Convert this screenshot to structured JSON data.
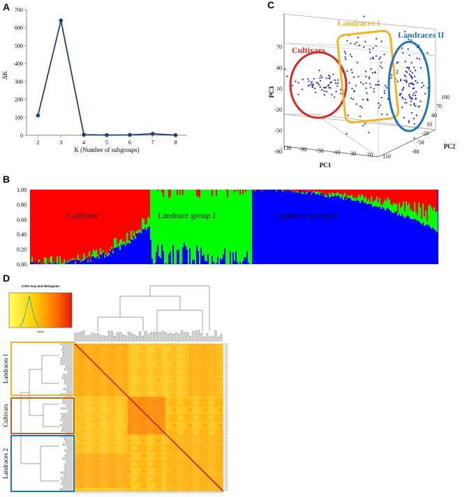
{
  "panels": {
    "a": "A",
    "b": "B",
    "c": "C",
    "d": "D"
  },
  "chart_data": [
    {
      "type": "line",
      "panel": "A",
      "x": [
        2,
        3,
        4,
        5,
        6,
        7,
        8
      ],
      "y": [
        110,
        640,
        3,
        1,
        2,
        8,
        1
      ],
      "xlabel": "K (Number of subgroups)",
      "ylabel": "ΔK",
      "xlim": [
        1.5,
        8.5
      ],
      "ylim": [
        0,
        700
      ],
      "yticks": [
        "0",
        "100",
        "200",
        "300",
        "400",
        "500",
        "600",
        "700"
      ],
      "xticks": [
        "2",
        "3",
        "4",
        "5",
        "6",
        "7",
        "8"
      ],
      "color": "#1f3f7a"
    },
    {
      "type": "scatter",
      "panel": "C",
      "xlabel": "PC1",
      "ylabel": "PC3",
      "zlabel": "PC2",
      "pc1_ticks": [
        "-130",
        "-90",
        "-50",
        "-10",
        "30",
        "70",
        "110"
      ],
      "pc2_ticks": [
        "-80",
        "-50",
        "-20",
        "10",
        "40",
        "70",
        "100"
      ],
      "pc3_ticks": [
        "70",
        "40",
        "10",
        "-20",
        "-50",
        "-80"
      ],
      "groups": [
        {
          "name": "Cultivars",
          "color": "#d8261e"
        },
        {
          "name": "Landraces I",
          "color": "#f0b323"
        },
        {
          "name": "Landraces II",
          "color": "#1b73ba"
        }
      ],
      "point_color": "#1a23c8"
    },
    {
      "type": "bar",
      "panel": "B",
      "stacked": true,
      "ylim": [
        0,
        1
      ],
      "yticks": [
        "0.00",
        "0.20",
        "0.40",
        "0.60",
        "0.80",
        "1.00"
      ],
      "group_labels": [
        "Cultivars",
        "Landrace group I",
        "Landrace group II"
      ],
      "series": [
        {
          "name": "",
          "color": "#ff0000"
        },
        {
          "name": "",
          "color": "#00ff00"
        },
        {
          "name": "",
          "color": "#0000ff"
        }
      ]
    },
    {
      "type": "heatmap",
      "panel": "D",
      "color_key_title": "Color Key and Histogram",
      "color_key_xlabel": "Value",
      "row_groups": [
        {
          "name": "Landraces I",
          "color": "#f0b323"
        },
        {
          "name": "Cultivars",
          "color": "#c0602a"
        },
        {
          "name": "Landraces 2",
          "color": "#1b73ba"
        }
      ],
      "colors": [
        "#ffff60",
        "#ffb000",
        "#ff6a00",
        "#e02000"
      ]
    }
  ]
}
